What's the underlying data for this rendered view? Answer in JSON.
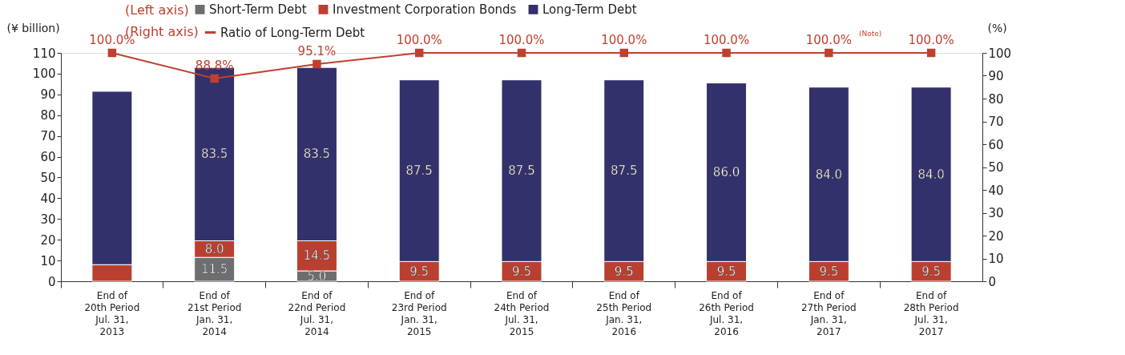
{
  "chart_data": {
    "type": "bar",
    "stacked": true,
    "categories": [
      "End of\n20th Period\nJul. 31,\n2013",
      "End of\n21st Period\nJan. 31,\n2014",
      "End of\n22nd Period\nJul. 31,\n2014",
      "End of\n23rd Period\nJan. 31,\n2015",
      "End of\n24th Period\nJul. 31,\n2015",
      "End of\n25th Period\nJan. 31,\n2016",
      "End of\n26th Period\nJul. 31,\n2016",
      "End of\n27th Period\nJan. 31,\n2017",
      "End of\n28th Period\nJul. 31,\n2017"
    ],
    "ylabel": "(¥ billion)",
    "y2label": "(%)",
    "ylim": [
      0,
      110
    ],
    "yticks": [
      0,
      10,
      20,
      30,
      40,
      50,
      60,
      70,
      80,
      90,
      100,
      110
    ],
    "y2lim": [
      0,
      100
    ],
    "y2ticks": [
      0,
      10,
      20,
      30,
      40,
      50,
      60,
      70,
      80,
      90,
      100
    ],
    "series": [
      {
        "name": "Short-Term Debt",
        "color": "#6d6e71",
        "values": [
          null,
          11.5,
          5.0,
          null,
          null,
          null,
          null,
          null,
          null
        ],
        "value_labels": [
          null,
          "11.5",
          "5.0",
          null,
          null,
          null,
          null,
          null,
          null
        ]
      },
      {
        "name": "Investment Corporation Bonds",
        "color": "#b94030",
        "values": [
          8.0,
          8.0,
          14.5,
          9.5,
          9.5,
          9.5,
          9.5,
          9.5,
          9.5
        ],
        "value_labels": [
          null,
          "8.0",
          "14.5",
          "9.5",
          "9.5",
          "9.5",
          "9.5",
          "9.5",
          "9.5"
        ]
      },
      {
        "name": "Long-Term Debt",
        "color": "#33316b",
        "values": [
          83.5,
          83.5,
          83.5,
          87.5,
          87.5,
          87.5,
          86.0,
          84.0,
          84.0
        ],
        "value_labels": [
          null,
          "83.5",
          "83.5",
          "87.5",
          "87.5",
          "87.5",
          "86.0",
          "84.0",
          "84.0"
        ]
      },
      {
        "name": "Ratio of Long-Term Debt",
        "type": "line",
        "axis": "y2",
        "marker": "square",
        "color": "#c0402e",
        "values": [
          100.0,
          88.8,
          95.1,
          100.0,
          100.0,
          100.0,
          100.0,
          100.0,
          100.0
        ],
        "value_labels": [
          "100.0%",
          "88.8%",
          "95.1%",
          "100.0%",
          "100.0%",
          "100.0%",
          "100.0%",
          "100.0%",
          "100.0%"
        ]
      }
    ],
    "annotations": [
      "(Left axis)",
      "(Right axis)",
      "(Note)"
    ],
    "legend": "top left",
    "grid": false
  }
}
